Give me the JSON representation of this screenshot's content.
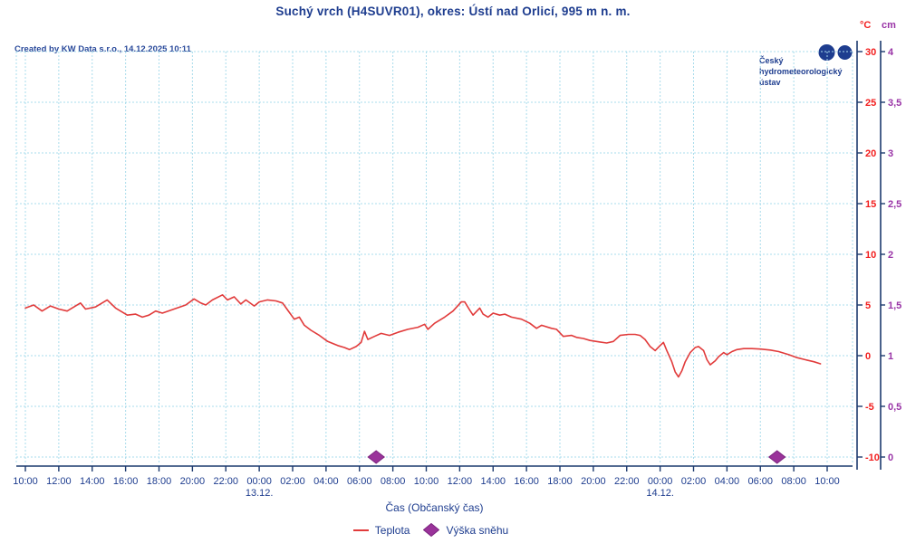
{
  "header": {
    "title": "Suchý vrch (H4SUVR01), okres: Ústí nad Orlicí, 995 m n. m.",
    "created_note": "Created by KW Data s.r.o., 14.12.2025 10:11"
  },
  "logo": {
    "line1": "Český",
    "line2": "hydrometeorologický",
    "line3": "ústav"
  },
  "colors": {
    "navy_text": "#1e3d8f",
    "axis_line": "#1c3a6e",
    "gridline": "#a9dcec",
    "temp_line": "#e13b3b",
    "temp_axis_text": "#f21d1d",
    "snow_axis_text": "#9933a6",
    "snow_marker_fill": "#9a339a",
    "snow_marker_stroke": "#7c2580"
  },
  "chart_data": {
    "type": "line",
    "title": "Suchý vrch (H4SUVR01), okres: Ústí nad Orlicí, 995 m n. m.",
    "grid": "dashed light blue, horizontal every 5 °C, vertical every 2 h",
    "x_axis": {
      "title": "Čas (Občanský čas)",
      "start": "12.12. 10:00",
      "end": "14.12. 10:00",
      "span_hours": 48,
      "tick_interval_hours": 2,
      "tick_labels": [
        "10:00",
        "12:00",
        "14:00",
        "16:00",
        "18:00",
        "20:00",
        "22:00",
        "00:00",
        "02:00",
        "04:00",
        "06:00",
        "08:00",
        "10:00",
        "12:00",
        "14:00",
        "16:00",
        "18:00",
        "20:00",
        "22:00",
        "00:00",
        "02:00",
        "04:00",
        "06:00",
        "08:00",
        "10:00"
      ],
      "date_labels": [
        {
          "label": "13.12.",
          "hours_from_start": 14
        },
        {
          "label": "14.12.",
          "hours_from_start": 38
        }
      ]
    },
    "y_axis_temp": {
      "unit": "°C",
      "min": -10,
      "max": 30,
      "step": 5,
      "tick_labels": [
        "30",
        "25",
        "20",
        "15",
        "10",
        "5",
        "0",
        "-5",
        "-10"
      ]
    },
    "y_axis_snow": {
      "unit": "cm",
      "min": 0,
      "max": 4,
      "step": 0.5,
      "tick_labels": [
        "4",
        "3,5",
        "3",
        "2,5",
        "2",
        "1,5",
        "1",
        "0,5",
        "0"
      ]
    },
    "series": [
      {
        "name": "Teplota",
        "type": "line",
        "axis": "temp",
        "points_hours_degC": [
          [
            0,
            4.7
          ],
          [
            0.5,
            5.0
          ],
          [
            1,
            4.4
          ],
          [
            1.5,
            4.9
          ],
          [
            2,
            4.6
          ],
          [
            2.5,
            4.4
          ],
          [
            3.3,
            5.2
          ],
          [
            3.6,
            4.6
          ],
          [
            4.2,
            4.8
          ],
          [
            4.9,
            5.5
          ],
          [
            5.4,
            4.7
          ],
          [
            6.1,
            4.0
          ],
          [
            6.6,
            4.1
          ],
          [
            7,
            3.8
          ],
          [
            7.4,
            4.0
          ],
          [
            7.8,
            4.4
          ],
          [
            8.2,
            4.2
          ],
          [
            8.9,
            4.6
          ],
          [
            9.6,
            5.0
          ],
          [
            10.1,
            5.6
          ],
          [
            10.5,
            5.2
          ],
          [
            10.8,
            5.0
          ],
          [
            11.2,
            5.5
          ],
          [
            11.8,
            6.0
          ],
          [
            12.1,
            5.5
          ],
          [
            12.5,
            5.8
          ],
          [
            12.9,
            5.1
          ],
          [
            13.2,
            5.5
          ],
          [
            13.7,
            4.9
          ],
          [
            14,
            5.3
          ],
          [
            14.5,
            5.5
          ],
          [
            15,
            5.4
          ],
          [
            15.4,
            5.2
          ],
          [
            15.7,
            4.5
          ],
          [
            16.1,
            3.6
          ],
          [
            16.4,
            3.8
          ],
          [
            16.7,
            3.0
          ],
          [
            17.1,
            2.5
          ],
          [
            17.6,
            2.0
          ],
          [
            18.1,
            1.4
          ],
          [
            18.7,
            1.0
          ],
          [
            19.1,
            0.8
          ],
          [
            19.4,
            0.6
          ],
          [
            19.8,
            0.9
          ],
          [
            20.1,
            1.3
          ],
          [
            20.3,
            2.4
          ],
          [
            20.5,
            1.6
          ],
          [
            20.9,
            1.9
          ],
          [
            21.3,
            2.2
          ],
          [
            21.8,
            2.0
          ],
          [
            22.3,
            2.3
          ],
          [
            22.9,
            2.6
          ],
          [
            23.5,
            2.8
          ],
          [
            23.9,
            3.1
          ],
          [
            24.1,
            2.6
          ],
          [
            24.5,
            3.2
          ],
          [
            25.1,
            3.8
          ],
          [
            25.6,
            4.4
          ],
          [
            26.1,
            5.3
          ],
          [
            26.3,
            5.3
          ],
          [
            26.6,
            4.5
          ],
          [
            26.8,
            4.0
          ],
          [
            27.2,
            4.7
          ],
          [
            27.4,
            4.1
          ],
          [
            27.7,
            3.8
          ],
          [
            28,
            4.2
          ],
          [
            28.4,
            4.0
          ],
          [
            28.7,
            4.1
          ],
          [
            29.1,
            3.8
          ],
          [
            29.7,
            3.6
          ],
          [
            30.2,
            3.2
          ],
          [
            30.6,
            2.7
          ],
          [
            30.9,
            3.0
          ],
          [
            31.5,
            2.7
          ],
          [
            31.8,
            2.6
          ],
          [
            32.2,
            1.9
          ],
          [
            32.7,
            2.0
          ],
          [
            33,
            1.8
          ],
          [
            33.4,
            1.7
          ],
          [
            33.8,
            1.5
          ],
          [
            34.4,
            1.35
          ],
          [
            34.8,
            1.25
          ],
          [
            35.2,
            1.4
          ],
          [
            35.6,
            2.0
          ],
          [
            36.1,
            2.1
          ],
          [
            36.5,
            2.1
          ],
          [
            36.8,
            2.0
          ],
          [
            37.1,
            1.6
          ],
          [
            37.4,
            0.9
          ],
          [
            37.7,
            0.5
          ],
          [
            38,
            1.0
          ],
          [
            38.2,
            1.3
          ],
          [
            38.4,
            0.5
          ],
          [
            38.7,
            -0.6
          ],
          [
            38.9,
            -1.6
          ],
          [
            39.1,
            -2.1
          ],
          [
            39.3,
            -1.5
          ],
          [
            39.5,
            -0.6
          ],
          [
            39.8,
            0.3
          ],
          [
            40.1,
            0.8
          ],
          [
            40.3,
            0.9
          ],
          [
            40.6,
            0.5
          ],
          [
            40.8,
            -0.4
          ],
          [
            41,
            -0.9
          ],
          [
            41.3,
            -0.5
          ],
          [
            41.5,
            -0.1
          ],
          [
            41.8,
            0.3
          ],
          [
            42,
            0.1
          ],
          [
            42.3,
            0.4
          ],
          [
            42.6,
            0.6
          ],
          [
            43,
            0.7
          ],
          [
            43.5,
            0.7
          ],
          [
            44,
            0.65
          ],
          [
            44.6,
            0.55
          ],
          [
            45.1,
            0.4
          ],
          [
            45.7,
            0.1
          ],
          [
            46.2,
            -0.2
          ],
          [
            46.7,
            -0.4
          ],
          [
            47.2,
            -0.6
          ],
          [
            47.6,
            -0.8
          ]
        ]
      },
      {
        "name": "Výška sněhu",
        "type": "diamond-marker",
        "axis": "snow",
        "points_hours_cm": [
          [
            21,
            0
          ],
          [
            45,
            0
          ]
        ]
      }
    ]
  },
  "legend": {
    "items": [
      {
        "label": "Teplota",
        "marker": "red-line"
      },
      {
        "label": "Výška sněhu",
        "marker": "purple-diamond"
      }
    ]
  }
}
